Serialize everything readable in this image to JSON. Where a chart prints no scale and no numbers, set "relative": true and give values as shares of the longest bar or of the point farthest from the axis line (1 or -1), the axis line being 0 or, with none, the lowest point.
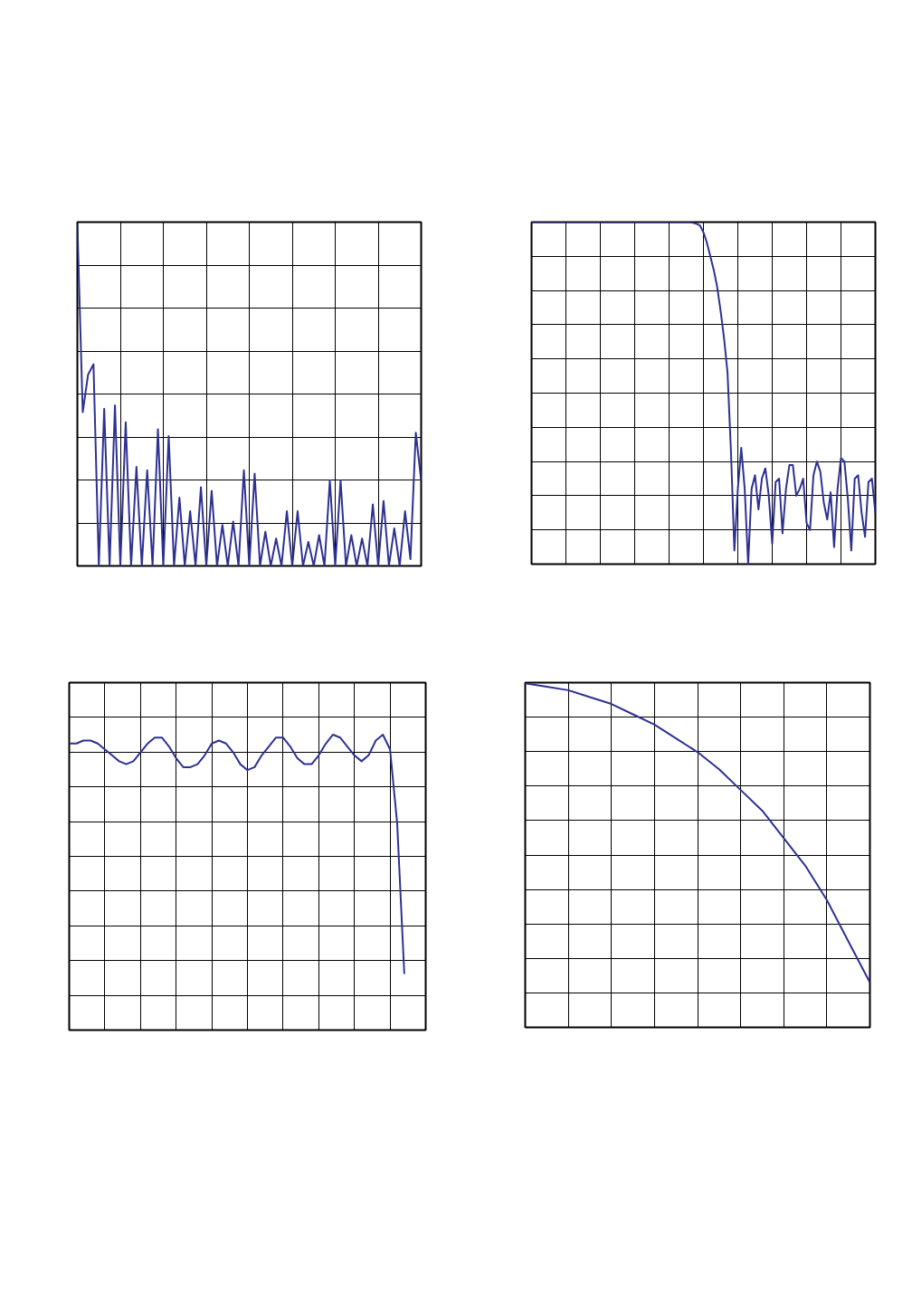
{
  "chart_data": [
    {
      "type": "line",
      "relative": true,
      "grid": true,
      "tick_labels": false,
      "color": "#2e3192",
      "categories": [
        null,
        null,
        null,
        null,
        null,
        null,
        null,
        null,
        null,
        null,
        null,
        null,
        null,
        null,
        null,
        null,
        null,
        null,
        null,
        null,
        null,
        null,
        null,
        null,
        null,
        null,
        null,
        null,
        null,
        null,
        null,
        null,
        null,
        null,
        null,
        null,
        null,
        null,
        null,
        null,
        null,
        null,
        null,
        null,
        null,
        null,
        null,
        null,
        null,
        null,
        null,
        null,
        null,
        null,
        null,
        null,
        null,
        null,
        null,
        null,
        null,
        null,
        null,
        null,
        null
      ],
      "values": [
        1.0,
        0.45,
        0.56,
        0.59,
        0,
        0.46,
        0,
        0.47,
        0,
        0.42,
        0,
        0.29,
        0,
        0.28,
        0,
        0.4,
        0,
        0.38,
        0,
        0.2,
        0,
        0.16,
        0,
        0.23,
        0,
        0.22,
        0,
        0.12,
        0,
        0.13,
        0,
        0.28,
        0,
        0.27,
        0,
        0.1,
        0,
        0.08,
        0,
        0.16,
        0,
        0.16,
        0,
        0.07,
        0,
        0.09,
        0,
        0.25,
        0,
        0.25,
        0,
        0.09,
        0,
        0.08,
        0,
        0.18,
        0,
        0.19,
        0,
        0.11,
        0,
        0.16,
        0.02,
        0.39,
        0.25
      ]
    },
    {
      "type": "line",
      "relative": true,
      "grid": true,
      "tick_labels": false,
      "color": "#2e3192",
      "categories": [
        null,
        null,
        null,
        null,
        null,
        null,
        null,
        null,
        null,
        null,
        null,
        null,
        null,
        null,
        null,
        null,
        null,
        null,
        null,
        null,
        null,
        null,
        null,
        null,
        null,
        null,
        null,
        null,
        null,
        null,
        null,
        null,
        null,
        null,
        null,
        null,
        null,
        null,
        null,
        null,
        null,
        null,
        null,
        null,
        null,
        null,
        null,
        null,
        null,
        null,
        null,
        null,
        null,
        null,
        null,
        null,
        null,
        null,
        null,
        null,
        null,
        null,
        null,
        null,
        null,
        null,
        null,
        null,
        null,
        null,
        null,
        null,
        null,
        null,
        null,
        null,
        null,
        null,
        null,
        null,
        null,
        null,
        null,
        null,
        null,
        null,
        null,
        null,
        null,
        null,
        null,
        null,
        null,
        null,
        null,
        null,
        null,
        null,
        null,
        null,
        null
      ],
      "values": [
        1,
        1,
        1,
        1,
        1,
        1,
        1,
        1,
        1,
        1,
        1,
        1,
        1,
        1,
        1,
        1,
        1,
        1,
        1,
        1,
        1,
        1,
        1,
        1,
        1,
        1,
        1,
        1,
        1,
        1,
        1,
        1,
        1,
        1,
        1,
        1,
        1,
        1,
        1,
        1,
        1,
        1,
        1,
        1,
        1,
        1,
        1,
        0.998,
        0.995,
        0.99,
        0.97,
        0.94,
        0.9,
        0.86,
        0.81,
        0.74,
        0.66,
        0.56,
        0.33,
        0.04,
        0.22,
        0.34,
        0.22,
        0.0,
        0.22,
        0.26,
        0.16,
        0.25,
        0.28,
        0.2,
        0.06,
        0.24,
        0.25,
        0.09,
        0.22,
        0.29,
        0.29,
        0.2,
        0.22,
        0.25,
        0.12,
        0.1,
        0.26,
        0.3,
        0.27,
        0.18,
        0.13,
        0.21,
        0.05,
        0.22,
        0.31,
        0.3,
        0.19,
        0.04,
        0.25,
        0.26,
        0.15,
        0.08,
        0.24,
        0.25,
        0.15
      ]
    },
    {
      "type": "line",
      "relative": true,
      "grid": true,
      "tick_labels": false,
      "color": "#2e3192",
      "categories": [
        null,
        null,
        null,
        null,
        null,
        null,
        null,
        null,
        null,
        null,
        null,
        null,
        null,
        null,
        null,
        null,
        null,
        null,
        null,
        null,
        null,
        null,
        null,
        null,
        null,
        null,
        null,
        null,
        null,
        null,
        null,
        null,
        null,
        null,
        null,
        null,
        null,
        null,
        null,
        null,
        null,
        null,
        null,
        null,
        null,
        null,
        null,
        null,
        null,
        null,
        null
      ],
      "values": [
        0.97,
        0.97,
        0.98,
        0.98,
        0.97,
        0.95,
        0.93,
        0.91,
        0.9,
        0.91,
        0.94,
        0.97,
        0.99,
        0.99,
        0.96,
        0.92,
        0.89,
        0.89,
        0.9,
        0.93,
        0.97,
        0.98,
        0.97,
        0.94,
        0.9,
        0.88,
        0.89,
        0.93,
        0.96,
        0.99,
        0.99,
        0.96,
        0.92,
        0.9,
        0.9,
        0.93,
        0.97,
        1.0,
        0.99,
        0.96,
        0.93,
        0.91,
        0.93,
        0.98,
        1.0,
        0.95,
        0.7,
        0.19,
        null,
        null,
        null
      ]
    },
    {
      "type": "line",
      "relative": true,
      "grid": true,
      "tick_labels": false,
      "color": "#2e3192",
      "categories": [
        null,
        null,
        null,
        null,
        null,
        null,
        null,
        null,
        null,
        null,
        null,
        null,
        null,
        null,
        null,
        null,
        null
      ],
      "values": [
        1.0,
        0.99,
        0.98,
        0.96,
        0.94,
        0.91,
        0.88,
        0.84,
        0.8,
        0.75,
        0.69,
        0.63,
        0.55,
        0.47,
        0.37,
        0.25,
        0.13
      ]
    }
  ]
}
